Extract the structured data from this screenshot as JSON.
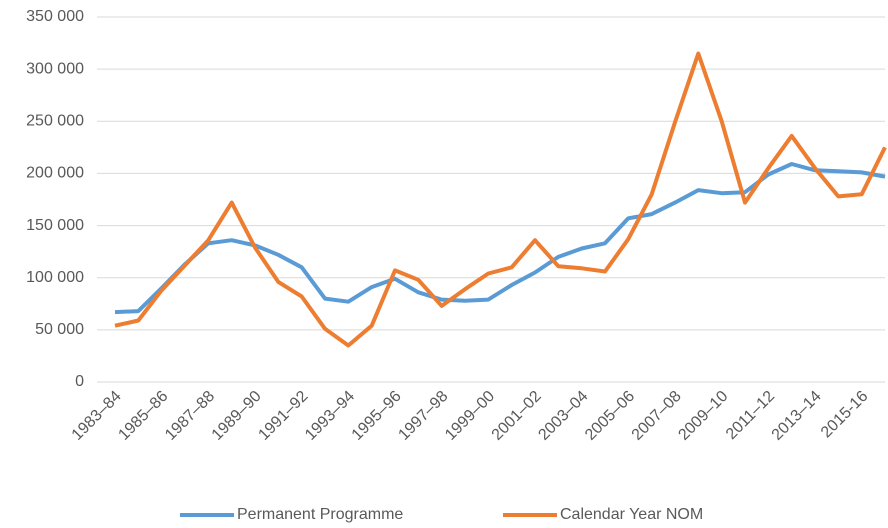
{
  "chart_data": {
    "type": "line",
    "categories": [
      "1983–84",
      null,
      "1985–86",
      null,
      "1987–88",
      null,
      "1989–90",
      null,
      "1991–92",
      null,
      "1993–94",
      null,
      "1995–96",
      null,
      "1997–98",
      null,
      "1999–00",
      null,
      "2001–02",
      null,
      "2003–04",
      null,
      "2005–06",
      null,
      "2007–08",
      null,
      "2009–10",
      null,
      "2011–12",
      null,
      "2013–14",
      null,
      "2015-16",
      null
    ],
    "series": [
      {
        "name": "Permanent Programme",
        "color": "#5b9bd5",
        "values": [
          67000,
          68000,
          90000,
          113000,
          133000,
          136000,
          131000,
          122000,
          110000,
          80000,
          77000,
          91000,
          99000,
          86000,
          79000,
          78000,
          79000,
          93000,
          105000,
          120000,
          128000,
          133000,
          157000,
          161000,
          172000,
          184000,
          181000,
          182000,
          199000,
          209000,
          203000,
          202000,
          201000,
          197000
        ]
      },
      {
        "name": "Calendar Year NOM",
        "color": "#ed7d31",
        "values": [
          54000,
          59000,
          88000,
          112000,
          136000,
          172000,
          129000,
          96000,
          82000,
          51000,
          35000,
          54000,
          107000,
          98000,
          73000,
          89000,
          104000,
          110000,
          136000,
          111000,
          109000,
          106000,
          137000,
          180000,
          249000,
          315000,
          250000,
          172000,
          205000,
          236000,
          205000,
          178000,
          180000,
          225000
        ]
      }
    ],
    "ylim": [
      0,
      350000
    ],
    "yticks": [
      0,
      {
        "value": 50000,
        "label": "50 000"
      },
      {
        "value": 100000,
        "label": "100 000"
      },
      {
        "value": 150000,
        "label": "150 000"
      },
      {
        "value": 200000,
        "label": "200 000"
      },
      {
        "value": 250000,
        "label": "250 000"
      },
      {
        "value": 300000,
        "label": "300 000"
      },
      {
        "value": 350000,
        "label": "350 000"
      }
    ],
    "grid": true
  }
}
